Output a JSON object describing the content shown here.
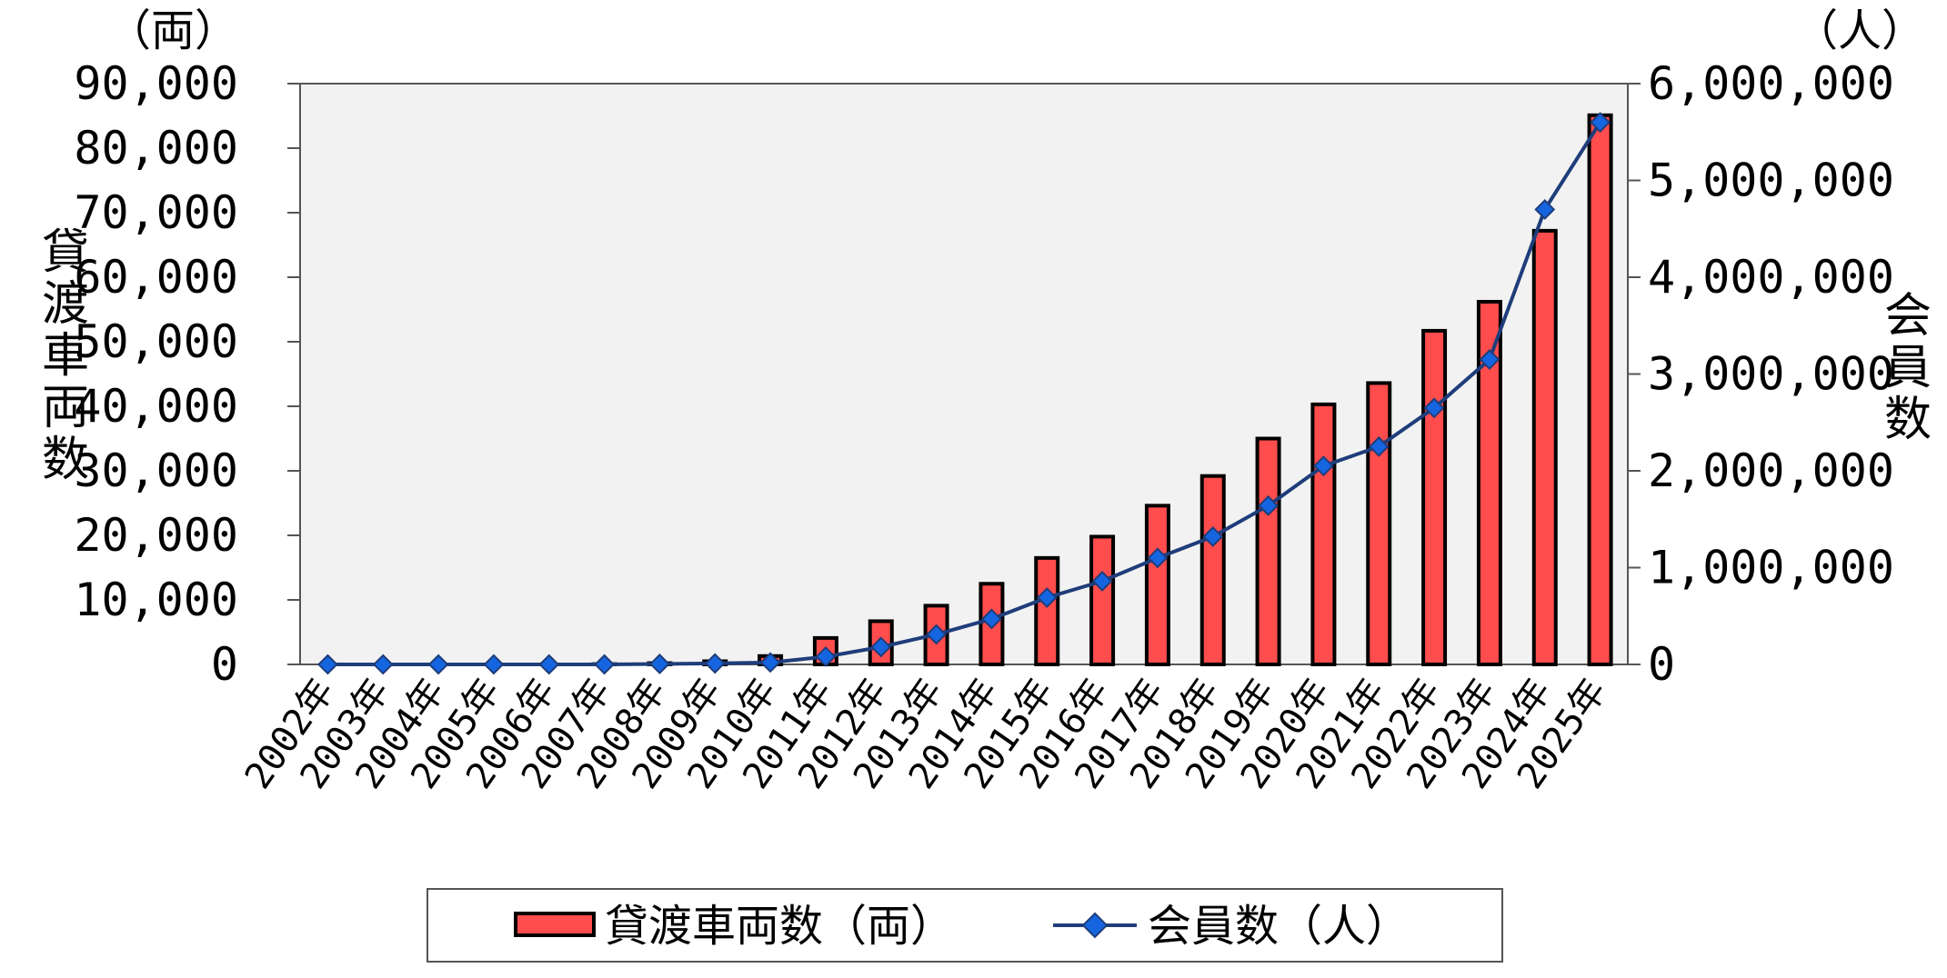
{
  "chart_data": {
    "type": "bar",
    "categories": [
      "2002年",
      "2003年",
      "2004年",
      "2005年",
      "2006年",
      "2007年",
      "2008年",
      "2009年",
      "2010年",
      "2011年",
      "2012年",
      "2013年",
      "2014年",
      "2015年",
      "2016年",
      "2017年",
      "2018年",
      "2019年",
      "2020年",
      "2021年",
      "2022年",
      "2023年",
      "2024年",
      "2025年"
    ],
    "series": [
      {
        "name": "貸渡車両数（両）",
        "type": "bar",
        "axis": "left",
        "color": "#ff4c4c",
        "values": [
          0,
          0,
          0,
          0,
          0,
          50,
          200,
          500,
          1300,
          4100,
          6700,
          9100,
          12500,
          16500,
          19800,
          24600,
          29200,
          35000,
          40300,
          43600,
          51700,
          56200,
          67200,
          85100
        ]
      },
      {
        "name": "会員数（人）",
        "type": "line",
        "axis": "right",
        "color": "#1f3d7a",
        "marker_color": "#1565e0",
        "values": [
          0,
          0,
          0,
          0,
          0,
          0,
          5000,
          10000,
          20000,
          80000,
          180000,
          310000,
          470000,
          690000,
          860000,
          1100000,
          1320000,
          1640000,
          2050000,
          2250000,
          2650000,
          3150000,
          4700000,
          5600000
        ]
      }
    ],
    "left_axis": {
      "title": "貸渡車両数",
      "unit": "（両）",
      "ylim": [
        0,
        90000
      ],
      "ticks": [
        "0",
        "10,000",
        "20,000",
        "30,000",
        "40,000",
        "50,000",
        "60,000",
        "70,000",
        "80,000",
        "90,000"
      ]
    },
    "right_axis": {
      "title": "会員数",
      "unit": "（人）",
      "ylim": [
        0,
        6000000
      ],
      "ticks": [
        "0",
        "1,000,000",
        "2,000,000",
        "3,000,000",
        "4,000,000",
        "5,000,000",
        "6,000,000"
      ]
    },
    "plot_background": "#f2f2f2",
    "grid": false,
    "legend_position": "bottom"
  }
}
